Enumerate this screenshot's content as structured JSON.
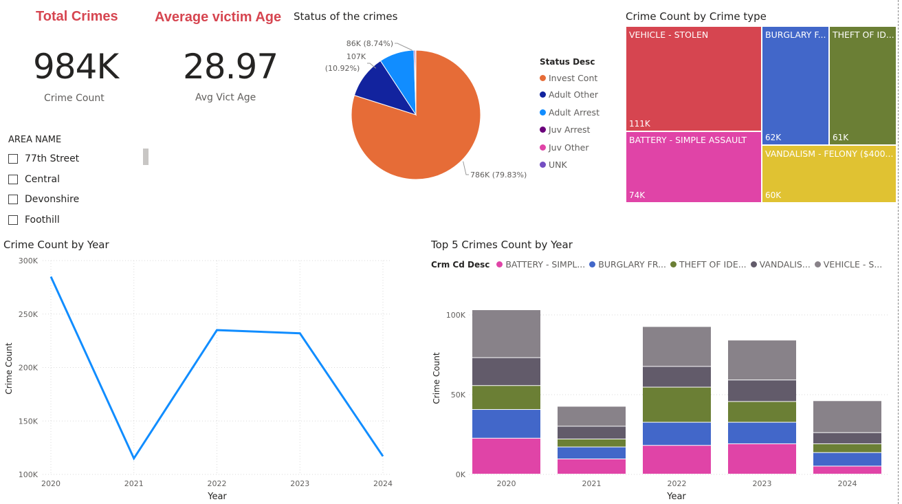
{
  "kpis": [
    {
      "title": "Total Crimes",
      "value": "984K",
      "subtitle": "Crime Count"
    },
    {
      "title": "Average victim Age",
      "value": "28.97",
      "subtitle": "Avg Vict Age"
    }
  ],
  "slicer": {
    "header": "AREA NAME",
    "items": [
      "77th Street",
      "Central",
      "Devonshire",
      "Foothill"
    ]
  },
  "colors": {
    "line": "#118dff",
    "invest_cont": "#e66c37",
    "adult_other": "#12239e",
    "adult_arrest": "#118dff",
    "juv_arrest": "#6b007b",
    "juv_other": "#e044a7",
    "unk": "#744ec2",
    "battery": "#e044a7",
    "burglary": "#4267c9",
    "theft": "#6b7f35",
    "vandalism": "#625b6a",
    "vehicle": "#888289",
    "tm_vehicle": "#d64550",
    "tm_burglary": "#4267c9",
    "tm_theft": "#6b7f35",
    "tm_battery": "#e044a7",
    "tm_vandalism": "#e0c232"
  },
  "chart_data": [
    {
      "type": "pie",
      "title": "Status of the crimes",
      "legend_title": "Status Desc",
      "legend_position": "right",
      "slices": [
        {
          "label": "Invest Cont",
          "value": 786,
          "display": "786K (79.83%)"
        },
        {
          "label": "Adult Other",
          "value": 107,
          "display": "107K (10.92%)"
        },
        {
          "label": "Adult Arrest",
          "value": 86,
          "display": "86K (8.74%)"
        },
        {
          "label": "Juv Arrest",
          "value": 3,
          "display": ""
        },
        {
          "label": "Juv Other",
          "value": 2,
          "display": ""
        },
        {
          "label": "UNK",
          "value": 0.01,
          "display": ""
        }
      ]
    },
    {
      "type": "treemap",
      "title": "Crime Count by Crime type",
      "items": [
        {
          "label": "VEHICLE - STOLEN",
          "value": "111K"
        },
        {
          "label": "BURGLARY F...",
          "value": "62K"
        },
        {
          "label": "THEFT OF ID...",
          "value": "61K"
        },
        {
          "label": "BATTERY - SIMPLE ASSAULT",
          "value": "74K"
        },
        {
          "label": "VANDALISM - FELONY ($400...",
          "value": "60K"
        }
      ]
    },
    {
      "type": "line",
      "title": "Crime Count by Year",
      "xlabel": "Year",
      "ylabel": "Crime Count",
      "x": [
        "2020",
        "2021",
        "2022",
        "2023",
        "2024"
      ],
      "y": [
        285000,
        115000,
        235000,
        232000,
        117000
      ],
      "ylim": [
        100000,
        300000
      ],
      "yticks": [
        "300K",
        "250K",
        "200K",
        "150K",
        "100K"
      ],
      "grid": true
    },
    {
      "type": "bar",
      "stacked": true,
      "title": "Top 5 Crimes Count by Year",
      "legend_title": "Crm Cd Desc",
      "legend_position": "top",
      "xlabel": "Year",
      "ylabel": "Crime Count",
      "categories": [
        "2020",
        "2021",
        "2022",
        "2023",
        "2024"
      ],
      "ylim": [
        0,
        110000
      ],
      "yticks": [
        "100K",
        "50K",
        "0K"
      ],
      "series": [
        {
          "name": "BATTERY - SIMPL...",
          "values": [
            22500,
            9500,
            18000,
            19000,
            5000
          ]
        },
        {
          "name": "BURGLARY FR...",
          "values": [
            18000,
            7500,
            14500,
            13500,
            8500
          ]
        },
        {
          "name": "THEFT OF IDE...",
          "values": [
            15000,
            5000,
            22000,
            13000,
            5500
          ]
        },
        {
          "name": "VANDALIS...",
          "values": [
            17500,
            8000,
            13000,
            13500,
            7000
          ]
        },
        {
          "name": "VEHICLE - S...",
          "values": [
            30000,
            12500,
            25000,
            25000,
            20000
          ]
        }
      ]
    }
  ]
}
